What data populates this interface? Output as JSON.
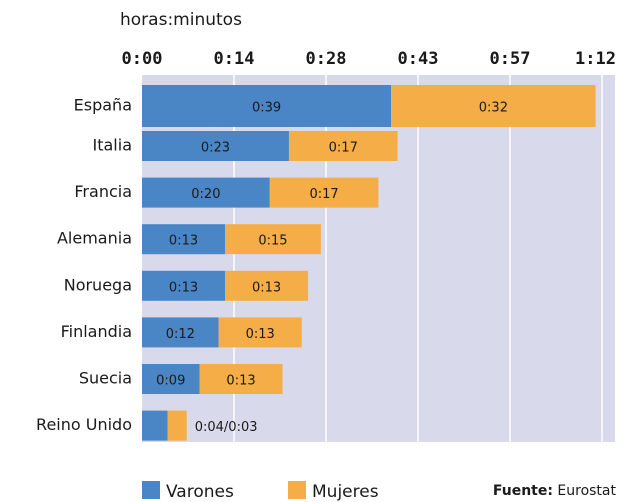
{
  "chart_data": {
    "type": "stacked-bar-horizontal",
    "axis_label": "horas:minutos",
    "categories": [
      "España",
      "Italia",
      "Francia",
      "Alemania",
      "Noruega",
      "Finlandia",
      "Suecia",
      "Reino Unido"
    ],
    "series": [
      {
        "name": "Varones",
        "color": "#4a86c5",
        "values": [
          39,
          23,
          20,
          13,
          13,
          12,
          9,
          4
        ],
        "value_labels": [
          "0:39",
          "0:23",
          "0:20",
          "0:13",
          "0:13",
          "0:12",
          "0:09",
          "0:04/0:03"
        ]
      },
      {
        "name": "Mujeres",
        "color": "#f5ad48",
        "values": [
          32,
          17,
          17,
          15,
          13,
          13,
          13,
          3
        ],
        "value_labels": [
          "0:32",
          "0:17",
          "0:17",
          "0:15",
          "0:13",
          "0:13",
          "0:13",
          null
        ]
      }
    ],
    "xlim": [
      0,
      72
    ],
    "xticks": [
      {
        "value": 0,
        "label": "0:00"
      },
      {
        "value": 14.4,
        "label": "0:14"
      },
      {
        "value": 28.8,
        "label": "0:28"
      },
      {
        "value": 43.2,
        "label": "0:43"
      },
      {
        "value": 57.6,
        "label": "0:57"
      },
      {
        "value": 72,
        "label": "1:12"
      }
    ],
    "grid": true,
    "background": "#d9d9ec",
    "source": {
      "label": "Fuente:",
      "text": "Eurostat"
    }
  }
}
